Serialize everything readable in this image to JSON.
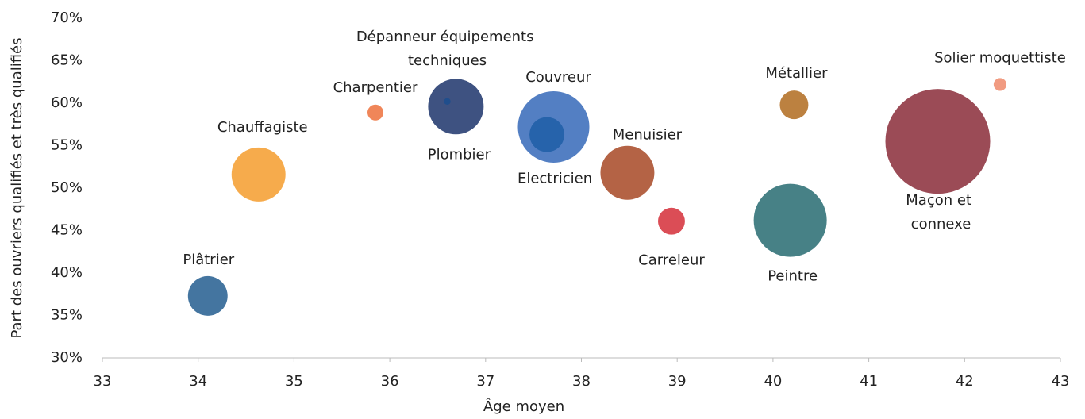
{
  "chart_data": {
    "type": "scatter",
    "x_label": "Âge moyen",
    "y_label": "Part des ouvriers qualifiés et très qualifiés",
    "xlim": [
      33,
      43
    ],
    "xticks": [
      33,
      34,
      35,
      36,
      37,
      38,
      39,
      40,
      41,
      42,
      43
    ],
    "ylim": [
      30,
      70
    ],
    "yticks": [
      {
        "value": 30,
        "label": "30%"
      },
      {
        "value": 35,
        "label": "35%"
      },
      {
        "value": 40,
        "label": "40%"
      },
      {
        "value": 45,
        "label": "45%"
      },
      {
        "value": 50,
        "label": "50%"
      },
      {
        "value": 55,
        "label": "55%"
      },
      {
        "value": 60,
        "label": "60%"
      },
      {
        "value": 65,
        "label": "65%"
      },
      {
        "value": 70,
        "label": "70%"
      }
    ],
    "points": [
      {
        "label": "Plâtrier",
        "x": 34.1,
        "y": 37.3,
        "size": 14.3,
        "color": "#3a6e9b"
      },
      {
        "label": "Chauffagiste",
        "x": 34.63,
        "y": 51.6,
        "size": 26.5,
        "color": "#f5a742"
      },
      {
        "label": "Charpentier",
        "x": 35.85,
        "y": 58.9,
        "size": 2.3,
        "color": "#ef8050"
      },
      {
        "label": "Plombier",
        "x": 36.69,
        "y": 59.6,
        "size": 28.1,
        "color": "#34497a"
      },
      {
        "label": "Dépanneur équipements techniques",
        "x": 36.6,
        "y": 60.2,
        "size": 0.4,
        "color": "#1f4e8c"
      },
      {
        "label": "Couvreur",
        "x": 37.71,
        "y": 57.2,
        "size": 46.5,
        "color": "#4a78c0"
      },
      {
        "label": "Electricien",
        "x": 37.64,
        "y": 56.3,
        "size": 11.1,
        "color": "#2462aa"
      },
      {
        "label": "Menuisier",
        "x": 38.48,
        "y": 51.8,
        "size": 26.5,
        "color": "#b05b3b"
      },
      {
        "label": "Carreleur",
        "x": 38.94,
        "y": 46.1,
        "size": 6.6,
        "color": "#d9434d"
      },
      {
        "label": "Métallier",
        "x": 40.22,
        "y": 59.8,
        "size": 7.4,
        "color": "#b87a36"
      },
      {
        "label": "Peintre",
        "x": 40.18,
        "y": 46.2,
        "size": 48.6,
        "color": "#3d7a80"
      },
      {
        "label": "Maçon et connexe",
        "x": 41.72,
        "y": 55.5,
        "size": 100,
        "color": "#96414d"
      },
      {
        "label": "Solier moquettiste",
        "x": 42.37,
        "y": 62.2,
        "size": 1.5,
        "color": "#f0967a"
      }
    ]
  }
}
